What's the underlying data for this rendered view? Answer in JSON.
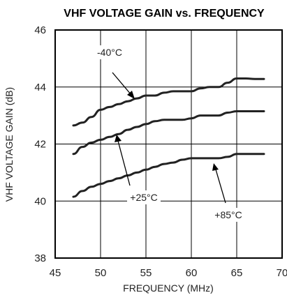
{
  "chart_data": {
    "type": "line",
    "title": "VHF VOLTAGE GAIN vs. FREQUENCY",
    "xlabel": "FREQUENCY (MHz)",
    "ylabel": "VHF VOLTAGE GAIN (dB)",
    "xlim": [
      45,
      70
    ],
    "ylim": [
      38,
      46
    ],
    "xticks": [
      45,
      50,
      55,
      60,
      65,
      70
    ],
    "yticks": [
      38,
      40,
      42,
      44,
      46
    ],
    "xtick_labels": [
      "45",
      "50",
      "55",
      "60",
      "65",
      "70"
    ],
    "ytick_labels": [
      "38",
      "40",
      "42",
      "44",
      "46"
    ],
    "grid": true,
    "series": [
      {
        "name": "-40°C",
        "x": [
          47,
          48,
          49,
          50,
          51,
          52,
          53,
          54,
          55,
          56,
          57,
          58,
          59,
          60,
          61,
          62,
          63,
          64,
          65,
          66,
          67,
          68
        ],
        "y": [
          42.65,
          42.75,
          42.95,
          43.2,
          43.3,
          43.4,
          43.5,
          43.6,
          43.7,
          43.7,
          43.8,
          43.85,
          43.85,
          43.85,
          43.95,
          44.0,
          44.0,
          44.15,
          44.3,
          44.3,
          44.28,
          44.28
        ]
      },
      {
        "name": "+25°C",
        "x": [
          47,
          48,
          49,
          50,
          51,
          52,
          53,
          54,
          55,
          56,
          57,
          58,
          59,
          60,
          61,
          62,
          63,
          64,
          65,
          66,
          67,
          68
        ],
        "y": [
          41.65,
          41.9,
          42.05,
          42.15,
          42.25,
          42.35,
          42.5,
          42.6,
          42.7,
          42.8,
          42.85,
          42.85,
          42.85,
          42.9,
          43.0,
          43.0,
          43.0,
          43.1,
          43.15,
          43.15,
          43.15,
          43.15
        ]
      },
      {
        "name": "+85°C",
        "x": [
          47,
          48,
          49,
          50,
          51,
          52,
          53,
          54,
          55,
          56,
          57,
          58,
          59,
          60,
          61,
          62,
          63,
          64,
          65,
          66,
          67,
          68
        ],
        "y": [
          40.15,
          40.35,
          40.5,
          40.6,
          40.7,
          40.8,
          40.9,
          41.0,
          41.1,
          41.2,
          41.3,
          41.35,
          41.45,
          41.5,
          41.5,
          41.5,
          41.5,
          41.55,
          41.65,
          41.65,
          41.65,
          41.65
        ]
      }
    ],
    "annotations": [
      {
        "text": "-40°C",
        "series": 0,
        "point": [
          55,
          43.7
        ]
      },
      {
        "text": "+25°C",
        "series": 1,
        "point": [
          52.2,
          42.35
        ]
      },
      {
        "text": "+85°C",
        "series": 2,
        "point": [
          63.5,
          41.5
        ]
      }
    ]
  }
}
